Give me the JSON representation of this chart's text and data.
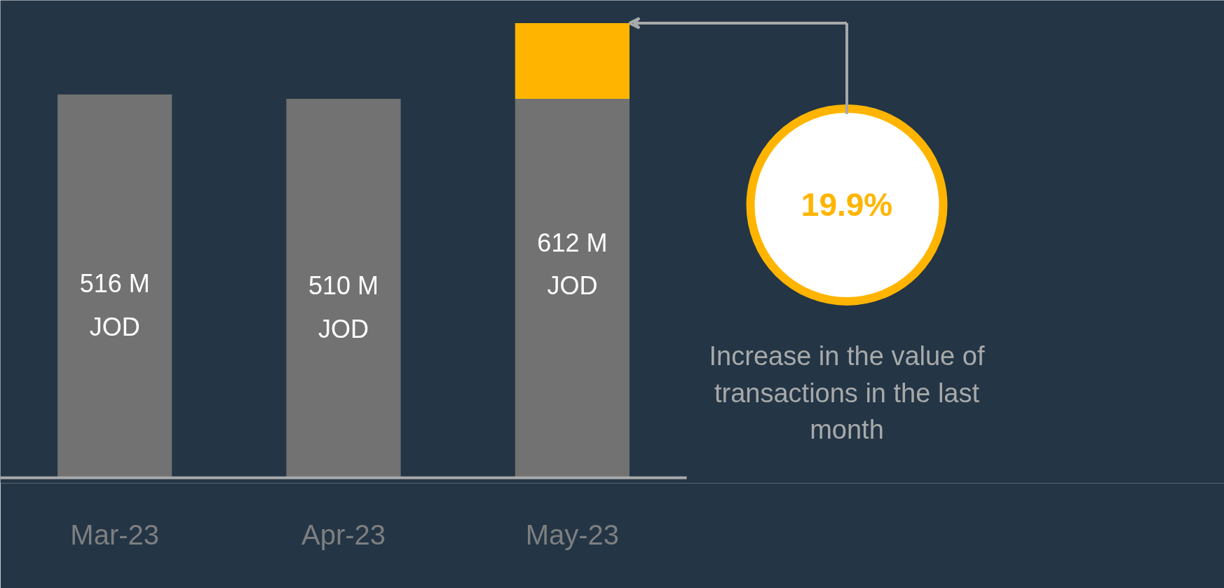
{
  "chart_data": {
    "type": "bar",
    "stacked": true,
    "categories": [
      "Mar-23",
      "Apr-23",
      "May-23"
    ],
    "series": [
      {
        "color": "#717271",
        "values": [
          516,
          510,
          510
        ],
        "value_labels": [
          "516 M\nJOD",
          "510 M\nJOD",
          null
        ]
      },
      {
        "color": "#ffb500",
        "values": [
          null,
          null,
          102
        ]
      }
    ],
    "totals": [
      null,
      null,
      "612 M\nJOD"
    ],
    "annotations": [
      "19.9%",
      "Increase in the value of transactions in the last month"
    ],
    "grid": false
  }
}
